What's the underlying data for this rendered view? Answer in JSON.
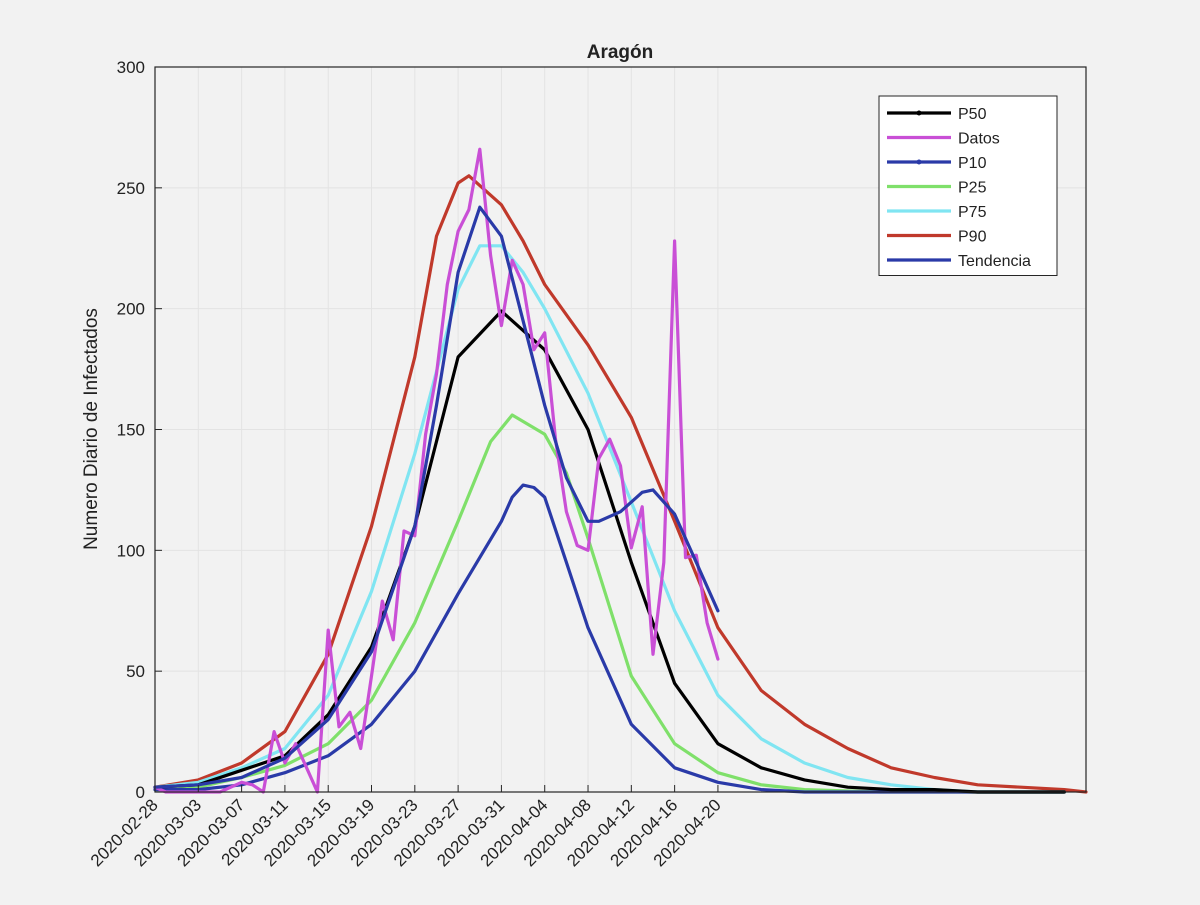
{
  "chart_data": {
    "type": "line",
    "title": "Aragón",
    "xlabel": "",
    "ylabel": "Numero Diario de Infectados",
    "ylim": [
      0,
      300
    ],
    "xlim": [
      "2020-02-28",
      "2020-05-24"
    ],
    "yticks": [
      0,
      50,
      100,
      150,
      200,
      250,
      300
    ],
    "xticks": [
      "2020-02-28",
      "2020-03-03",
      "2020-03-07",
      "2020-03-11",
      "2020-03-15",
      "2020-03-19",
      "2020-03-23",
      "2020-03-27",
      "2020-03-31",
      "2020-04-04",
      "2020-04-08",
      "2020-04-12",
      "2020-04-16",
      "2020-04-20"
    ],
    "grid": true,
    "legend_position": "top-right",
    "series": [
      {
        "name": "P50",
        "color": "#000000",
        "marker": "dot",
        "points": [
          [
            "2020-02-28",
            2
          ],
          [
            "2020-03-03",
            3
          ],
          [
            "2020-03-07",
            9
          ],
          [
            "2020-03-11",
            15
          ],
          [
            "2020-03-15",
            32
          ],
          [
            "2020-03-19",
            60
          ],
          [
            "2020-03-23",
            110
          ],
          [
            "2020-03-27",
            180
          ],
          [
            "2020-03-31",
            199
          ],
          [
            "2020-04-04",
            183
          ],
          [
            "2020-04-08",
            150
          ],
          [
            "2020-04-12",
            95
          ],
          [
            "2020-04-16",
            45
          ],
          [
            "2020-04-20",
            20
          ],
          [
            "2020-04-24",
            10
          ],
          [
            "2020-04-28",
            5
          ],
          [
            "2020-05-02",
            2
          ],
          [
            "2020-05-06",
            1
          ],
          [
            "2020-05-10",
            1
          ],
          [
            "2020-05-14",
            0
          ],
          [
            "2020-05-18",
            0
          ],
          [
            "2020-05-22",
            0
          ]
        ]
      },
      {
        "name": "Datos",
        "color": "#c94fd6",
        "marker": "none",
        "points": [
          [
            "2020-02-28",
            2
          ],
          [
            "2020-02-29",
            0
          ],
          [
            "2020-03-01",
            0
          ],
          [
            "2020-03-02",
            0
          ],
          [
            "2020-03-03",
            0
          ],
          [
            "2020-03-04",
            0
          ],
          [
            "2020-03-05",
            0
          ],
          [
            "2020-03-06",
            2
          ],
          [
            "2020-03-07",
            4
          ],
          [
            "2020-03-08",
            3
          ],
          [
            "2020-03-09",
            0
          ],
          [
            "2020-03-10",
            25
          ],
          [
            "2020-03-11",
            12
          ],
          [
            "2020-03-12",
            20
          ],
          [
            "2020-03-13",
            10
          ],
          [
            "2020-03-14",
            0
          ],
          [
            "2020-03-15",
            67
          ],
          [
            "2020-03-16",
            27
          ],
          [
            "2020-03-17",
            33
          ],
          [
            "2020-03-18",
            18
          ],
          [
            "2020-03-19",
            48
          ],
          [
            "2020-03-20",
            79
          ],
          [
            "2020-03-21",
            63
          ],
          [
            "2020-03-22",
            108
          ],
          [
            "2020-03-23",
            106
          ],
          [
            "2020-03-24",
            148
          ],
          [
            "2020-03-25",
            173
          ],
          [
            "2020-03-26",
            210
          ],
          [
            "2020-03-27",
            232
          ],
          [
            "2020-03-28",
            241
          ],
          [
            "2020-03-29",
            266
          ],
          [
            "2020-03-30",
            222
          ],
          [
            "2020-03-31",
            193
          ],
          [
            "2020-04-01",
            220
          ],
          [
            "2020-04-02",
            210
          ],
          [
            "2020-04-03",
            183
          ],
          [
            "2020-04-04",
            190
          ],
          [
            "2020-04-05",
            146
          ],
          [
            "2020-04-06",
            116
          ],
          [
            "2020-04-07",
            102
          ],
          [
            "2020-04-08",
            100
          ],
          [
            "2020-04-09",
            138
          ],
          [
            "2020-04-10",
            146
          ],
          [
            "2020-04-11",
            135
          ],
          [
            "2020-04-12",
            101
          ],
          [
            "2020-04-13",
            118
          ],
          [
            "2020-04-14",
            57
          ],
          [
            "2020-04-15",
            95
          ],
          [
            "2020-04-16",
            228
          ],
          [
            "2020-04-17",
            97
          ],
          [
            "2020-04-18",
            98
          ],
          [
            "2020-04-19",
            70
          ],
          [
            "2020-04-20",
            55
          ]
        ]
      },
      {
        "name": "P10",
        "color": "#2a3aa8",
        "marker": "dot",
        "points": [
          [
            "2020-02-28",
            1
          ],
          [
            "2020-03-03",
            1
          ],
          [
            "2020-03-07",
            3
          ],
          [
            "2020-03-11",
            8
          ],
          [
            "2020-03-15",
            15
          ],
          [
            "2020-03-19",
            28
          ],
          [
            "2020-03-23",
            50
          ],
          [
            "2020-03-27",
            82
          ],
          [
            "2020-03-31",
            112
          ],
          [
            "2020-04-01",
            122
          ],
          [
            "2020-04-02",
            127
          ],
          [
            "2020-04-03",
            126
          ],
          [
            "2020-04-04",
            122
          ],
          [
            "2020-04-06",
            95
          ],
          [
            "2020-04-08",
            68
          ],
          [
            "2020-04-12",
            28
          ],
          [
            "2020-04-16",
            10
          ],
          [
            "2020-04-20",
            4
          ],
          [
            "2020-04-24",
            1
          ],
          [
            "2020-04-28",
            0
          ],
          [
            "2020-05-05",
            0
          ],
          [
            "2020-05-22",
            0
          ]
        ]
      },
      {
        "name": "P25",
        "color": "#7fe06a",
        "marker": "none",
        "points": [
          [
            "2020-02-28",
            1
          ],
          [
            "2020-03-03",
            2
          ],
          [
            "2020-03-07",
            6
          ],
          [
            "2020-03-11",
            11
          ],
          [
            "2020-03-15",
            20
          ],
          [
            "2020-03-19",
            38
          ],
          [
            "2020-03-23",
            70
          ],
          [
            "2020-03-27",
            112
          ],
          [
            "2020-03-30",
            145
          ],
          [
            "2020-04-01",
            156
          ],
          [
            "2020-04-04",
            148
          ],
          [
            "2020-04-06",
            132
          ],
          [
            "2020-04-08",
            105
          ],
          [
            "2020-04-12",
            48
          ],
          [
            "2020-04-16",
            20
          ],
          [
            "2020-04-20",
            8
          ],
          [
            "2020-04-24",
            3
          ],
          [
            "2020-04-28",
            1
          ],
          [
            "2020-05-05",
            0
          ],
          [
            "2020-05-22",
            0
          ]
        ]
      },
      {
        "name": "P75",
        "color": "#80e5f2",
        "marker": "none",
        "points": [
          [
            "2020-02-28",
            2
          ],
          [
            "2020-03-03",
            4
          ],
          [
            "2020-03-07",
            10
          ],
          [
            "2020-03-11",
            18
          ],
          [
            "2020-03-15",
            40
          ],
          [
            "2020-03-19",
            83
          ],
          [
            "2020-03-23",
            140
          ],
          [
            "2020-03-27",
            208
          ],
          [
            "2020-03-29",
            226
          ],
          [
            "2020-03-31",
            226
          ],
          [
            "2020-04-02",
            215
          ],
          [
            "2020-04-04",
            200
          ],
          [
            "2020-04-08",
            165
          ],
          [
            "2020-04-12",
            120
          ],
          [
            "2020-04-16",
            75
          ],
          [
            "2020-04-20",
            40
          ],
          [
            "2020-04-24",
            22
          ],
          [
            "2020-04-28",
            12
          ],
          [
            "2020-05-02",
            6
          ],
          [
            "2020-05-06",
            3
          ],
          [
            "2020-05-10",
            1
          ],
          [
            "2020-05-14",
            0
          ],
          [
            "2020-05-22",
            0
          ]
        ]
      },
      {
        "name": "P90",
        "color": "#c0392b",
        "marker": "none",
        "points": [
          [
            "2020-02-28",
            2
          ],
          [
            "2020-03-03",
            5
          ],
          [
            "2020-03-07",
            12
          ],
          [
            "2020-03-11",
            25
          ],
          [
            "2020-03-15",
            57
          ],
          [
            "2020-03-19",
            110
          ],
          [
            "2020-03-23",
            180
          ],
          [
            "2020-03-25",
            230
          ],
          [
            "2020-03-27",
            252
          ],
          [
            "2020-03-28",
            255
          ],
          [
            "2020-03-31",
            243
          ],
          [
            "2020-04-02",
            228
          ],
          [
            "2020-04-04",
            210
          ],
          [
            "2020-04-08",
            185
          ],
          [
            "2020-04-12",
            155
          ],
          [
            "2020-04-16",
            112
          ],
          [
            "2020-04-20",
            68
          ],
          [
            "2020-04-24",
            42
          ],
          [
            "2020-04-28",
            28
          ],
          [
            "2020-05-02",
            18
          ],
          [
            "2020-05-06",
            10
          ],
          [
            "2020-05-10",
            6
          ],
          [
            "2020-05-14",
            3
          ],
          [
            "2020-05-18",
            2
          ],
          [
            "2020-05-22",
            1
          ],
          [
            "2020-05-24",
            0
          ]
        ]
      },
      {
        "name": "Tendencia",
        "color": "#2a3aa8",
        "marker": "none",
        "points": [
          [
            "2020-02-28",
            2
          ],
          [
            "2020-03-03",
            3
          ],
          [
            "2020-03-07",
            6
          ],
          [
            "2020-03-11",
            14
          ],
          [
            "2020-03-15",
            30
          ],
          [
            "2020-03-19",
            58
          ],
          [
            "2020-03-23",
            110
          ],
          [
            "2020-03-25",
            160
          ],
          [
            "2020-03-27",
            215
          ],
          [
            "2020-03-29",
            242
          ],
          [
            "2020-03-31",
            230
          ],
          [
            "2020-04-02",
            195
          ],
          [
            "2020-04-04",
            160
          ],
          [
            "2020-04-06",
            130
          ],
          [
            "2020-04-08",
            112
          ],
          [
            "2020-04-09",
            112
          ],
          [
            "2020-04-11",
            116
          ],
          [
            "2020-04-13",
            124
          ],
          [
            "2020-04-14",
            125
          ],
          [
            "2020-04-16",
            115
          ],
          [
            "2020-04-18",
            95
          ],
          [
            "2020-04-20",
            75
          ]
        ]
      }
    ]
  }
}
